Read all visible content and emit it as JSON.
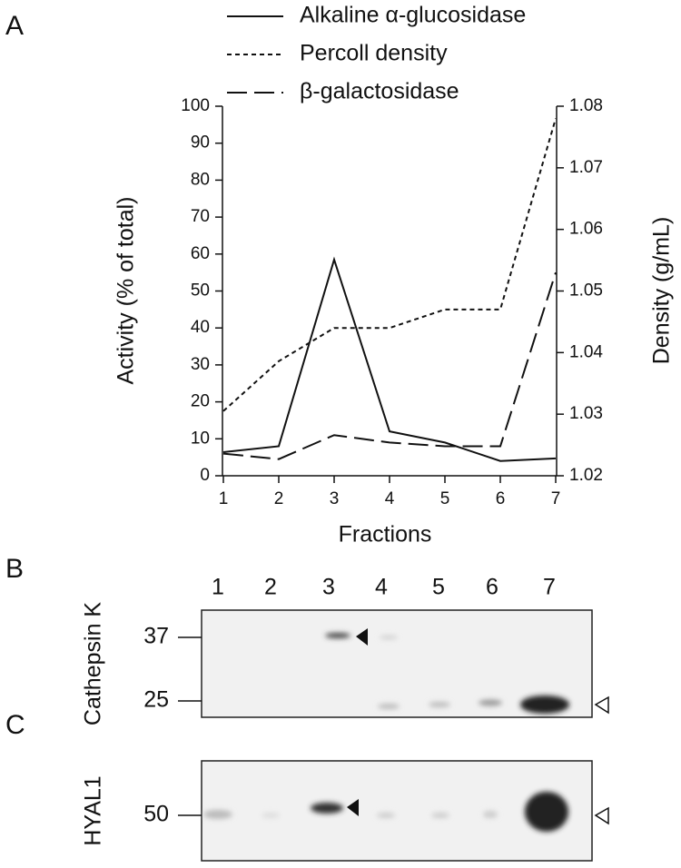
{
  "panel_labels": [
    "A",
    "B",
    "C"
  ],
  "chart_data": {
    "type": "line",
    "xlabel": "Fractions",
    "ylabel": "Activity (% of total)",
    "y2label": "Density (g/mL)",
    "x": [
      1,
      2,
      3,
      4,
      5,
      6,
      7
    ],
    "xlim": [
      1,
      7
    ],
    "xticks": [
      1,
      2,
      3,
      4,
      5,
      6,
      7
    ],
    "ylim": [
      0,
      100
    ],
    "yticks": [
      0,
      10,
      20,
      30,
      40,
      50,
      60,
      70,
      80,
      90,
      100
    ],
    "y2lim": [
      1.02,
      1.08
    ],
    "y2ticks": [
      1.02,
      1.03,
      1.04,
      1.05,
      1.06,
      1.07,
      1.08
    ],
    "series": [
      {
        "name": "Alkaline α-glucosidase",
        "color": "#111",
        "dash": "solid",
        "values": [
          6.4,
          8,
          58.5,
          12,
          9,
          4,
          4.7
        ]
      },
      {
        "name": "Percoll density",
        "color": "#111",
        "dash": "dotted",
        "axis": "y2",
        "values": [
          1.0305,
          1.0386,
          1.044,
          1.044,
          1.047,
          1.047,
          1.078
        ]
      },
      {
        "name": "β-galactosidase",
        "color": "#111",
        "dash": "dashed",
        "values": [
          6,
          4.5,
          11,
          9,
          8,
          8,
          55
        ]
      }
    ]
  },
  "blots": {
    "lanes": [
      "1",
      "2",
      "3",
      "4",
      "5",
      "6",
      "7"
    ],
    "panels": [
      {
        "label": "Cathepsin K",
        "markers": [
          37,
          25
        ]
      },
      {
        "label": "HYAL1",
        "markers": [
          50
        ]
      }
    ]
  }
}
